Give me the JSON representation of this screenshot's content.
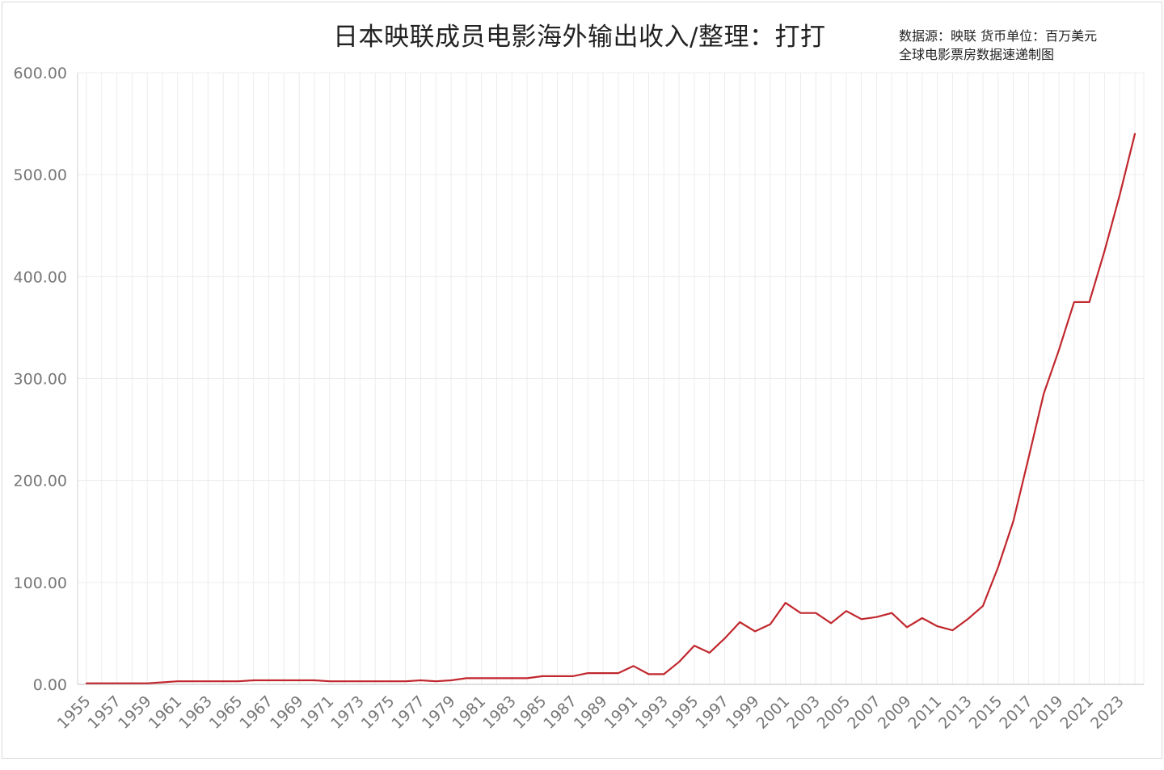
{
  "chart_data": {
    "type": "line",
    "title": "日本映联成员电影海外输出收入/整理：打打",
    "source_line1": "数据源：映联 货币单位：百万美元",
    "source_line2": "全球电影票房数据速递制图",
    "xlabel": "",
    "ylabel": "",
    "ylim": [
      0,
      600
    ],
    "yticks": [
      "0.00",
      "100.00",
      "200.00",
      "300.00",
      "400.00",
      "500.00",
      "600.00"
    ],
    "xtick_labels": [
      "1955",
      "1957",
      "1959",
      "1961",
      "1963",
      "1965",
      "1967",
      "1969",
      "1971",
      "1973",
      "1975",
      "1977",
      "1979",
      "1981",
      "1983",
      "1985",
      "1987",
      "1989",
      "1991",
      "1993",
      "1995",
      "1997",
      "1999",
      "2001",
      "2003",
      "2005",
      "2007",
      "2009",
      "2011",
      "2013",
      "2015",
      "2017",
      "2019",
      "2021",
      "2023"
    ],
    "grid": true,
    "line_color": "#c0272d",
    "series": [
      {
        "x": [
          1955,
          1956,
          1957,
          1958,
          1959,
          1960,
          1961,
          1962,
          1963,
          1964,
          1965,
          1966,
          1967,
          1968,
          1969,
          1970,
          1971,
          1972,
          1973,
          1974,
          1975,
          1976,
          1977,
          1978,
          1979,
          1980,
          1981,
          1982,
          1983,
          1984,
          1985,
          1986,
          1987,
          1988,
          1989,
          1990,
          1991,
          1992,
          1993,
          1994,
          1995,
          1996,
          1997,
          1998,
          1999,
          2000,
          2001,
          2002,
          2003,
          2004,
          2005,
          2006,
          2007,
          2008,
          2009,
          2010,
          2011,
          2012,
          2013,
          2014,
          2015,
          2016,
          2017,
          2018,
          2019,
          2020,
          2021,
          2022,
          2023,
          2024
        ],
        "values": [
          1,
          1,
          1,
          1,
          1,
          2,
          3,
          3,
          3,
          3,
          3,
          4,
          4,
          4,
          4,
          4,
          3,
          3,
          3,
          3,
          3,
          3,
          4,
          3,
          4,
          6,
          6,
          6,
          6,
          6,
          8,
          8,
          8,
          11,
          11,
          11,
          18,
          10,
          10,
          22,
          38,
          31,
          45,
          61,
          52,
          59,
          80,
          70,
          70,
          60,
          72,
          64,
          66,
          70,
          56,
          65,
          57,
          53,
          64,
          77,
          115,
          160,
          222,
          285,
          328,
          375,
          375,
          425,
          480,
          540
        ]
      }
    ]
  }
}
